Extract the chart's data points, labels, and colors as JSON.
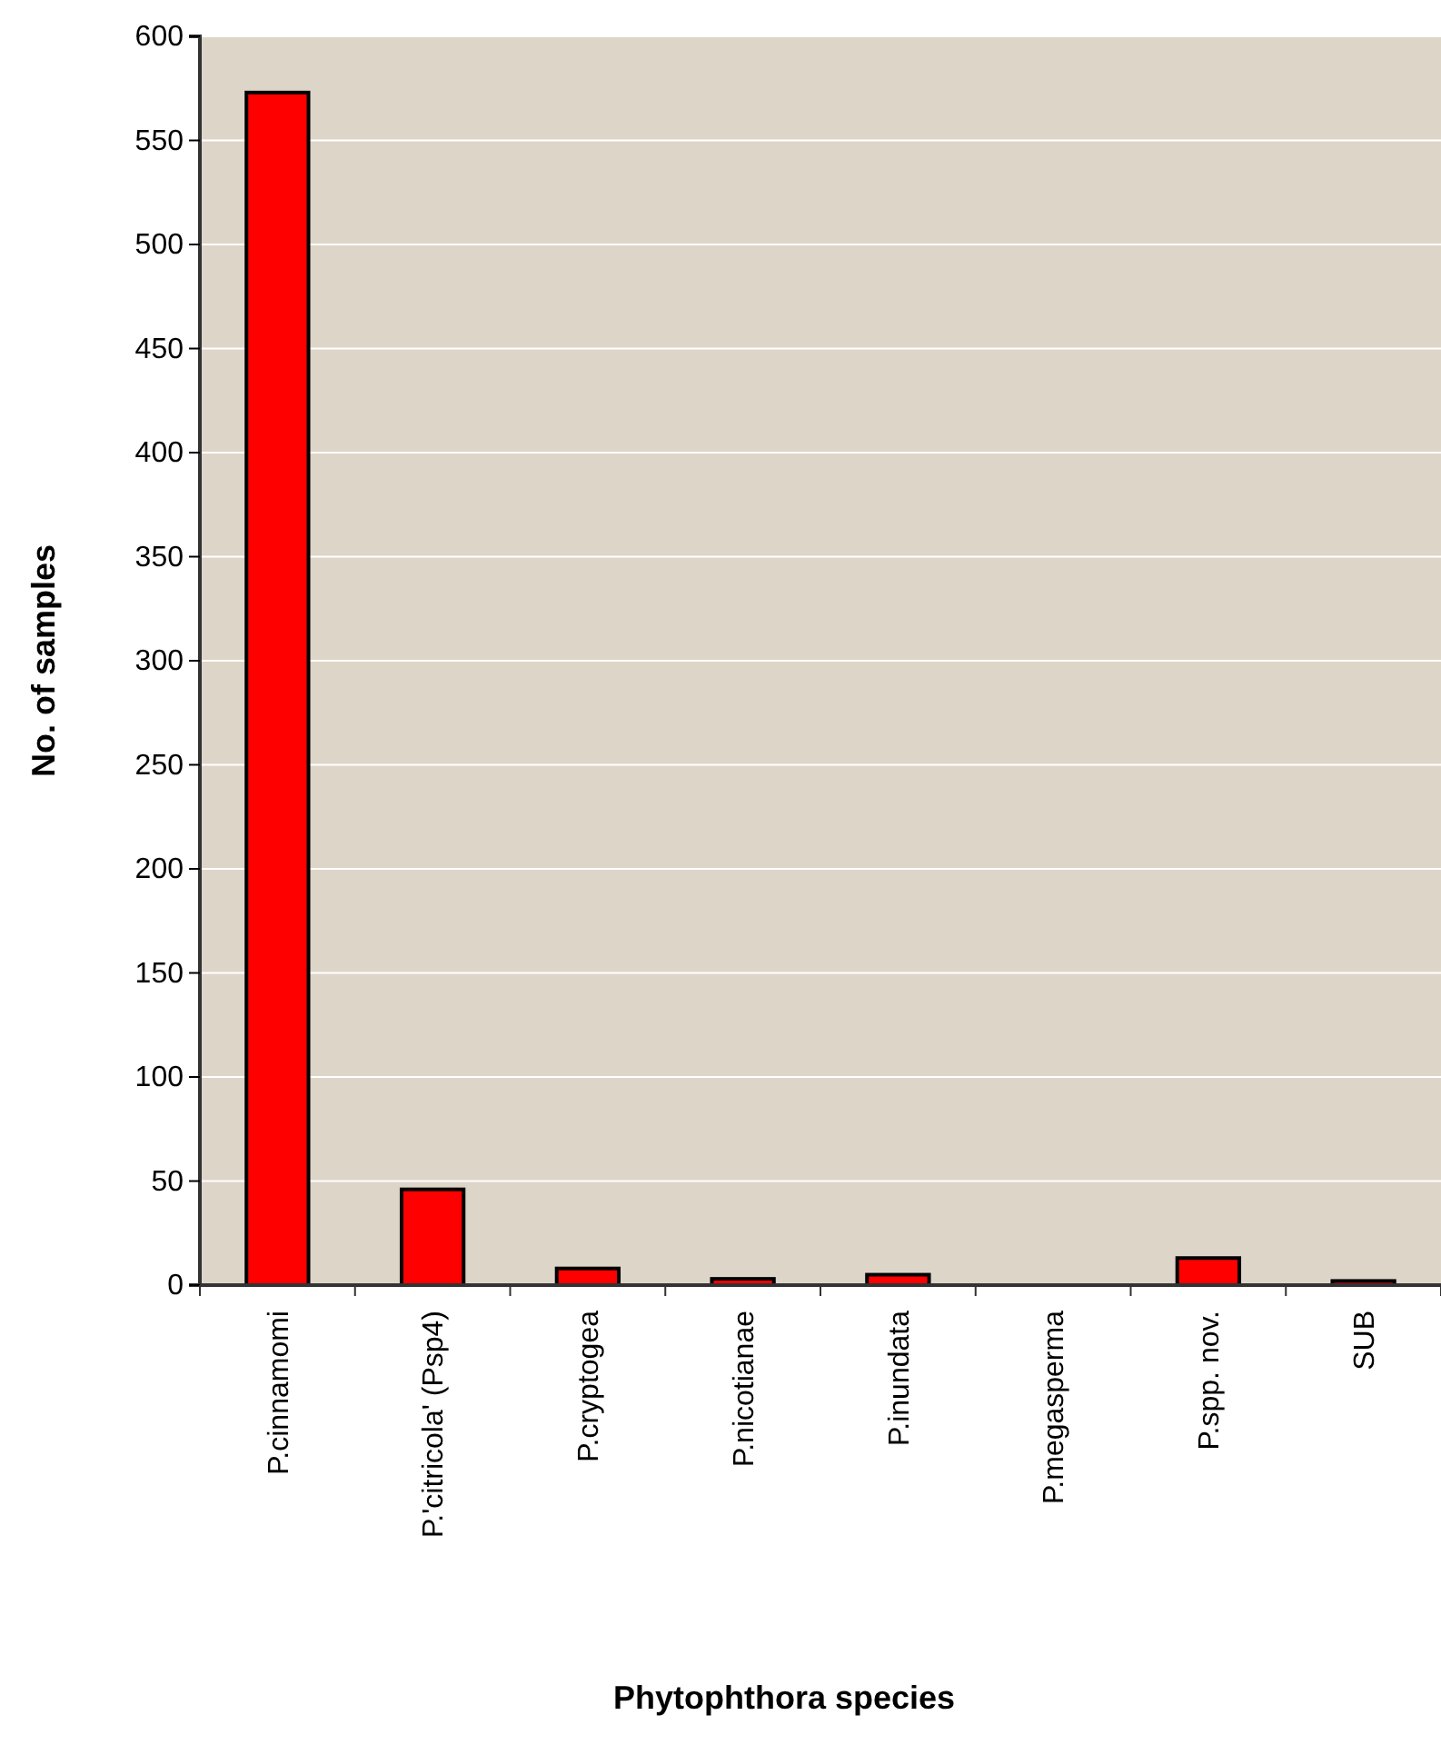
{
  "chart_data": {
    "type": "bar",
    "xlabel": "Phytophthora species",
    "ylabel": "No. of samples",
    "categories": [
      "P.cinnamomi",
      "P.'citricola' (Psp4)",
      "P.cryptogea",
      "P.nicotianae",
      "P.inundata",
      "P.megasperma",
      "P.spp. nov.",
      "SUB"
    ],
    "values": [
      573,
      46,
      8,
      3,
      5,
      0,
      13,
      2
    ],
    "color": "#ff0000",
    "ylim": [
      0,
      600
    ],
    "yticks": [
      0,
      50,
      100,
      150,
      200,
      250,
      300,
      350,
      400,
      450,
      500,
      550,
      600
    ],
    "grid": "y"
  }
}
